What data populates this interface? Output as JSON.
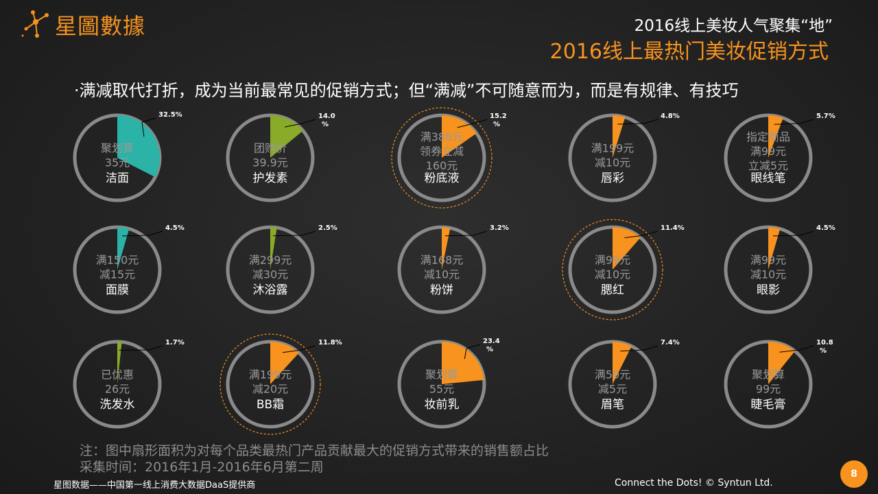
{
  "brand": {
    "logo_text": "星圖數據"
  },
  "header": {
    "title": "2016线上美妆人气聚集“地”",
    "subtitle_title": "2016线上最热门美妆促销方式"
  },
  "headline": "·满减取代打折，成为当前最常见的促销方式；但“满减”不可随意而为，而是有规律、有技巧",
  "colors": {
    "teal": "#2ab3a6",
    "green": "#8aaa2a",
    "orange": "#f7931e",
    "ring": "#8a8a8a",
    "inner_text": "#9a9a9a"
  },
  "chart_data": {
    "type": "pie",
    "title": "",
    "description_note": "扇形面积 = 对每个品类最热门产品贡献最大的促销方式带来的销售额占比",
    "items": [
      {
        "category": "洁面",
        "promo": [
          "聚划算",
          "35元"
        ],
        "value": 32.5,
        "label": "32.5%",
        "color": "teal",
        "highlight": false
      },
      {
        "category": "护发素",
        "promo": [
          "团购价",
          "39.9元"
        ],
        "value": 14.0,
        "label": "14.0\n%",
        "color": "green",
        "highlight": false
      },
      {
        "category": "粉底液",
        "promo": [
          "满388元",
          "领券立减",
          "160元"
        ],
        "value": 15.2,
        "label": "15.2\n%",
        "color": "orange",
        "highlight": true
      },
      {
        "category": "唇彩",
        "promo": [
          "满199元",
          "减10元"
        ],
        "value": 4.8,
        "label": "4.8%",
        "color": "orange",
        "highlight": false
      },
      {
        "category": "眼线笔",
        "promo": [
          "指定商品",
          "满99元",
          "立减5元"
        ],
        "value": 5.7,
        "label": "5.7%",
        "color": "orange",
        "highlight": false
      },
      {
        "category": "面膜",
        "promo": [
          "满150元",
          "减15元"
        ],
        "value": 4.5,
        "label": "4.5%",
        "color": "teal",
        "highlight": false
      },
      {
        "category": "沐浴露",
        "promo": [
          "满299元",
          "减30元"
        ],
        "value": 2.5,
        "label": "2.5%",
        "color": "green",
        "highlight": false
      },
      {
        "category": "粉饼",
        "promo": [
          "满168元",
          "减10元"
        ],
        "value": 3.2,
        "label": "3.2%",
        "color": "orange",
        "highlight": false
      },
      {
        "category": "腮红",
        "promo": [
          "满99元",
          "减10元"
        ],
        "value": 11.4,
        "label": "11.4%",
        "color": "orange",
        "highlight": true
      },
      {
        "category": "眼影",
        "promo": [
          "满99元",
          "减10元"
        ],
        "value": 4.5,
        "label": "4.5%",
        "color": "orange",
        "highlight": false
      },
      {
        "category": "洗发水",
        "promo": [
          "已优惠",
          "26元"
        ],
        "value": 1.7,
        "label": "1.7%",
        "color": "green",
        "highlight": false
      },
      {
        "category": "BB霜",
        "promo": [
          "满199元",
          "减20元"
        ],
        "value": 11.8,
        "label": "11.8%",
        "color": "orange",
        "highlight": true
      },
      {
        "category": "妆前乳",
        "promo": [
          "聚划算",
          "55元"
        ],
        "value": 23.4,
        "label": "23.4\n%",
        "color": "orange",
        "highlight": false
      },
      {
        "category": "眉笔",
        "promo": [
          "满50元",
          "减5元"
        ],
        "value": 7.4,
        "label": "7.4%",
        "color": "orange",
        "highlight": false
      },
      {
        "category": "睫毛膏",
        "promo": [
          "聚划算",
          "99元"
        ],
        "value": 10.8,
        "label": "10.8\n%",
        "color": "orange",
        "highlight": false
      }
    ]
  },
  "notes": {
    "line1": "注：图中扇形面积为对每个品类最热门产品贡献最大的促销方式带来的销售额占比",
    "line2": " 采集时间：2016年1月-2016年6月第二周"
  },
  "footer": {
    "left": "星图数据——中国第一线上消费大数据DaaS提供商",
    "right": "Connect the Dots!  © Syntun Ltd.",
    "page_number": "8"
  }
}
